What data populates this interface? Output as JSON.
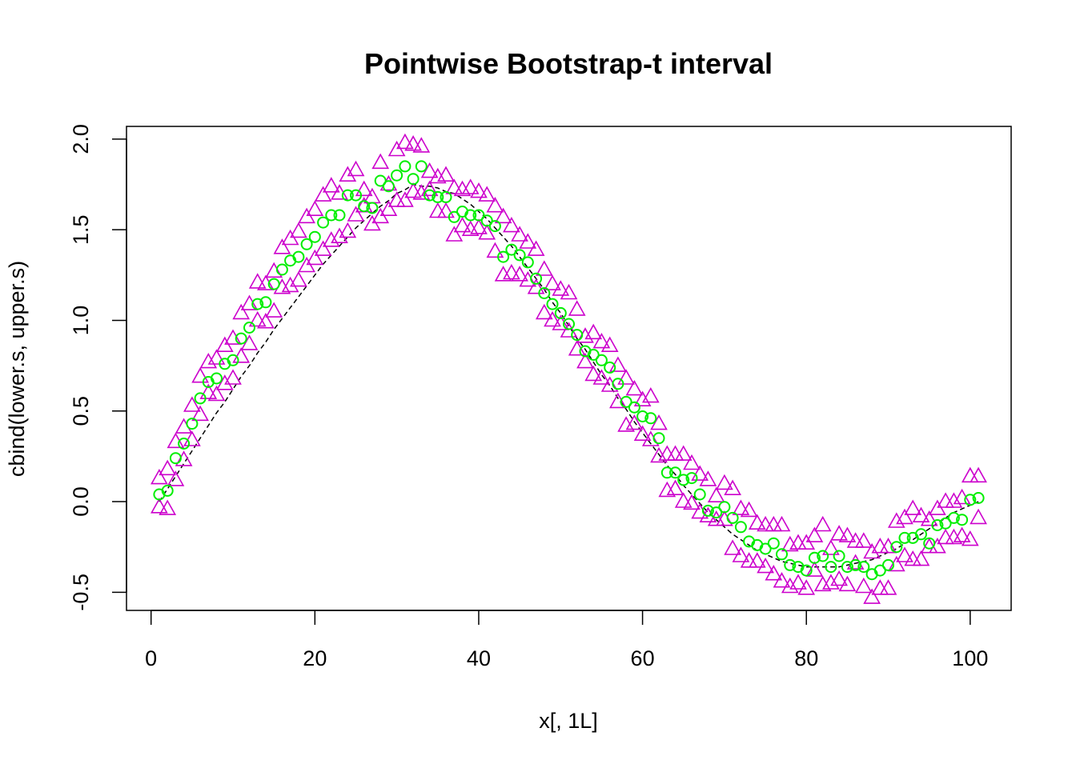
{
  "chart_data": {
    "type": "scatter",
    "title": "Pointwise Bootstrap-t interval",
    "xlabel": "x[, 1L]",
    "ylabel": "cbind(lower.s, upper.s)",
    "xlim": [
      -3,
      105
    ],
    "ylim": [
      -0.6,
      2.07
    ],
    "xticks": [
      0,
      20,
      40,
      60,
      80,
      100
    ],
    "yticks": [
      -0.5,
      0.0,
      0.5,
      1.0,
      1.5,
      2.0
    ],
    "xtick_labels": [
      "0",
      "20",
      "40",
      "60",
      "80",
      "100"
    ],
    "ytick_labels": [
      "-0.5",
      "0.0",
      "0.5",
      "1.0",
      "1.5",
      "2.0"
    ],
    "grid": false,
    "legend": "none",
    "colors": {
      "interval": "#cc00cc",
      "center": "#00ee00",
      "curve": "#000000"
    },
    "x": [
      1,
      2,
      3,
      4,
      5,
      6,
      7,
      8,
      9,
      10,
      11,
      12,
      13,
      14,
      15,
      16,
      17,
      18,
      19,
      20,
      21,
      22,
      23,
      24,
      25,
      26,
      27,
      28,
      29,
      30,
      31,
      32,
      33,
      34,
      35,
      36,
      37,
      38,
      39,
      40,
      41,
      42,
      43,
      44,
      45,
      46,
      47,
      48,
      49,
      50,
      51,
      52,
      53,
      54,
      55,
      56,
      57,
      58,
      59,
      60,
      61,
      62,
      63,
      64,
      65,
      66,
      67,
      68,
      69,
      70,
      71,
      72,
      73,
      74,
      75,
      76,
      77,
      78,
      79,
      80,
      81,
      82,
      83,
      84,
      85,
      86,
      87,
      88,
      89,
      90,
      91,
      92,
      93,
      94,
      95,
      96,
      97,
      98,
      99,
      100,
      101
    ],
    "series": [
      {
        "marker": "triangle",
        "values": [
          -0.03,
          -0.04,
          0.12,
          0.23,
          0.34,
          0.48,
          0.6,
          0.59,
          0.65,
          0.68,
          0.8,
          0.87,
          1.0,
          0.99,
          1.05,
          1.18,
          1.19,
          1.22,
          1.3,
          1.34,
          1.39,
          1.44,
          1.46,
          1.49,
          1.58,
          1.63,
          1.53,
          1.57,
          1.61,
          1.66,
          1.66,
          1.71,
          1.7,
          1.72,
          1.6,
          1.6,
          1.47,
          1.52,
          1.5,
          1.51,
          1.48,
          1.38,
          1.25,
          1.26,
          1.25,
          1.22,
          1.18,
          1.04,
          1.0,
          0.98,
          0.94,
          0.84,
          0.77,
          0.7,
          0.68,
          0.64,
          0.55,
          0.42,
          0.43,
          0.37,
          0.34,
          0.25,
          0.06,
          0.07,
          0.0,
          -0.01,
          -0.06,
          -0.08,
          -0.1,
          -0.1,
          -0.26,
          -0.3,
          -0.33,
          -0.33,
          -0.36,
          -0.4,
          -0.44,
          -0.47,
          -0.45,
          -0.48,
          -0.38,
          -0.46,
          -0.45,
          -0.43,
          -0.46,
          -0.34,
          -0.47,
          -0.53,
          -0.48,
          -0.48,
          -0.35,
          -0.3,
          -0.32,
          -0.32,
          -0.25,
          -0.25,
          -0.2,
          -0.2,
          -0.19,
          -0.21,
          -0.09
        ]
      },
      {
        "marker": "triangle",
        "values": [
          0.13,
          0.18,
          0.33,
          0.41,
          0.53,
          0.69,
          0.77,
          0.79,
          0.86,
          0.9,
          1.04,
          1.09,
          1.21,
          1.2,
          1.27,
          1.4,
          1.45,
          1.49,
          1.57,
          1.61,
          1.69,
          1.74,
          1.7,
          1.8,
          1.83,
          1.72,
          1.68,
          1.87,
          1.75,
          1.94,
          1.98,
          1.97,
          1.96,
          1.82,
          1.79,
          1.8,
          1.73,
          1.72,
          1.73,
          1.71,
          1.69,
          1.63,
          1.57,
          1.52,
          1.47,
          1.43,
          1.39,
          1.28,
          1.2,
          1.17,
          1.15,
          1.06,
          0.91,
          0.93,
          0.88,
          0.86,
          0.75,
          0.68,
          0.62,
          0.56,
          0.58,
          0.43,
          0.26,
          0.26,
          0.26,
          0.21,
          0.15,
          0.12,
          0.03,
          0.1,
          0.07,
          -0.04,
          -0.05,
          -0.12,
          -0.13,
          -0.13,
          -0.13,
          -0.24,
          -0.23,
          -0.23,
          -0.19,
          -0.13,
          -0.26,
          -0.18,
          -0.19,
          -0.22,
          -0.22,
          -0.28,
          -0.25,
          -0.25,
          -0.11,
          -0.09,
          -0.04,
          -0.08,
          -0.1,
          -0.04,
          0.0,
          0.0,
          0.02,
          0.14,
          0.14
        ]
      },
      {
        "marker": "circle",
        "values": [
          0.04,
          0.06,
          0.24,
          0.32,
          0.43,
          0.57,
          0.66,
          0.68,
          0.76,
          0.78,
          0.9,
          0.96,
          1.09,
          1.1,
          1.2,
          1.28,
          1.33,
          1.35,
          1.42,
          1.46,
          1.54,
          1.58,
          1.58,
          1.69,
          1.69,
          1.63,
          1.62,
          1.77,
          1.74,
          1.8,
          1.85,
          1.78,
          1.85,
          1.69,
          1.68,
          1.68,
          1.57,
          1.6,
          1.58,
          1.58,
          1.55,
          1.52,
          1.35,
          1.39,
          1.36,
          1.32,
          1.23,
          1.15,
          1.09,
          1.04,
          0.98,
          0.92,
          0.83,
          0.81,
          0.78,
          0.74,
          0.65,
          0.55,
          0.52,
          0.47,
          0.46,
          0.35,
          0.16,
          0.16,
          0.12,
          0.13,
          0.04,
          -0.05,
          -0.06,
          -0.03,
          -0.09,
          -0.14,
          -0.22,
          -0.24,
          -0.26,
          -0.23,
          -0.29,
          -0.35,
          -0.36,
          -0.38,
          -0.31,
          -0.3,
          -0.36,
          -0.3,
          -0.36,
          -0.35,
          -0.36,
          -0.4,
          -0.38,
          -0.35,
          -0.25,
          -0.2,
          -0.2,
          -0.18,
          -0.23,
          -0.13,
          -0.12,
          -0.09,
          -0.1,
          0.01,
          0.02
        ]
      }
    ],
    "curve": [
      0.0,
      0.07,
      0.14,
      0.21,
      0.28,
      0.35,
      0.42,
      0.49,
      0.55,
      0.62,
      0.69,
      0.75,
      0.82,
      0.88,
      0.95,
      1.01,
      1.07,
      1.13,
      1.19,
      1.25,
      1.31,
      1.36,
      1.41,
      1.46,
      1.51,
      1.55,
      1.59,
      1.63,
      1.66,
      1.7,
      1.72,
      1.75,
      1.74,
      1.74,
      1.73,
      1.71,
      1.7,
      1.67,
      1.64,
      1.6,
      1.56,
      1.51,
      1.46,
      1.41,
      1.35,
      1.29,
      1.23,
      1.17,
      1.1,
      1.04,
      0.97,
      0.9,
      0.84,
      0.77,
      0.7,
      0.64,
      0.57,
      0.51,
      0.44,
      0.38,
      0.32,
      0.26,
      0.2,
      0.15,
      0.09,
      0.04,
      -0.01,
      -0.06,
      -0.1,
      -0.14,
      -0.18,
      -0.21,
      -0.24,
      -0.27,
      -0.29,
      -0.31,
      -0.33,
      -0.34,
      -0.35,
      -0.36,
      -0.36,
      -0.36,
      -0.36,
      -0.36,
      -0.35,
      -0.34,
      -0.33,
      -0.32,
      -0.3,
      -0.28,
      -0.26,
      -0.23,
      -0.21,
      -0.18,
      -0.15,
      -0.12,
      -0.09,
      -0.06,
      -0.04,
      -0.02,
      0.0
    ]
  }
}
